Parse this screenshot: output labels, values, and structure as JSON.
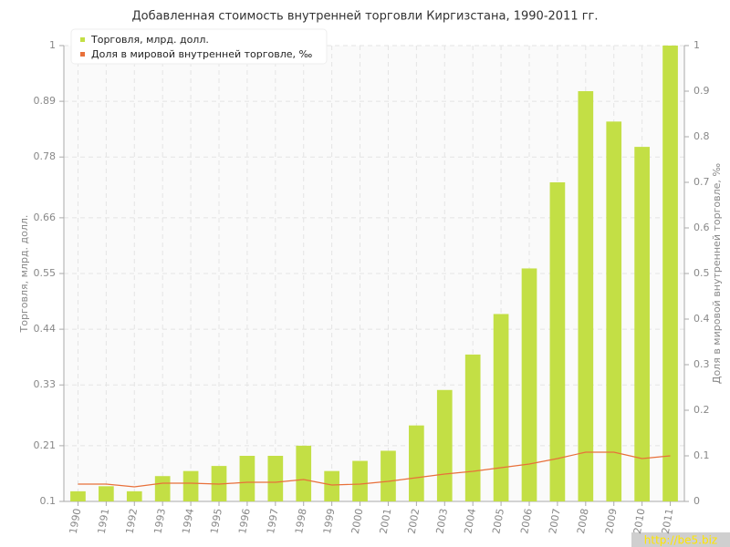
{
  "chart_data": {
    "type": "bar",
    "title": "Добавленная стоимость внутренней торговли Киргизстана, 1990-2011 гг.",
    "y_label": "Торговля, млрд. долл.",
    "y2_label": "Доля в мировой внутренней торговле, ‰",
    "watermark": "http://be5.biz",
    "categories": [
      "1990",
      "1991",
      "1992",
      "1993",
      "1994",
      "1995",
      "1996",
      "1997",
      "1998",
      "1999",
      "2000",
      "2001",
      "2002",
      "2003",
      "2004",
      "2005",
      "2006",
      "2007",
      "2008",
      "2009",
      "2010",
      "2011"
    ],
    "series": [
      {
        "name": "Торговля, млрд. долл.",
        "type": "bar",
        "color": "#c3df45",
        "values": [
          0.12,
          0.13,
          0.12,
          0.15,
          0.16,
          0.17,
          0.19,
          0.19,
          0.21,
          0.16,
          0.18,
          0.2,
          0.25,
          0.32,
          0.39,
          0.47,
          0.56,
          0.73,
          0.91,
          0.85,
          0.8,
          1.0
        ]
      },
      {
        "name": "Доля в мировой внутренней торговле, ‰",
        "type": "line",
        "axis": "y2",
        "color": "#e8703a",
        "values": [
          0.038,
          0.038,
          0.032,
          0.04,
          0.04,
          0.038,
          0.042,
          0.042,
          0.048,
          0.036,
          0.038,
          0.044,
          0.052,
          0.06,
          0.066,
          0.074,
          0.082,
          0.094,
          0.108,
          0.108,
          0.094,
          0.1
        ]
      }
    ],
    "ylim": [
      0.1,
      1
    ],
    "yticks": [
      0.1,
      0.21,
      0.33,
      0.44,
      0.55,
      0.66,
      0.78,
      0.89,
      1
    ],
    "y2lim": [
      0,
      1
    ],
    "y2ticks": [
      0,
      0.1,
      0.2,
      0.3,
      0.4,
      0.5,
      0.6,
      0.7,
      0.8,
      0.9,
      1
    ],
    "grid": true,
    "legend": "top-left"
  }
}
